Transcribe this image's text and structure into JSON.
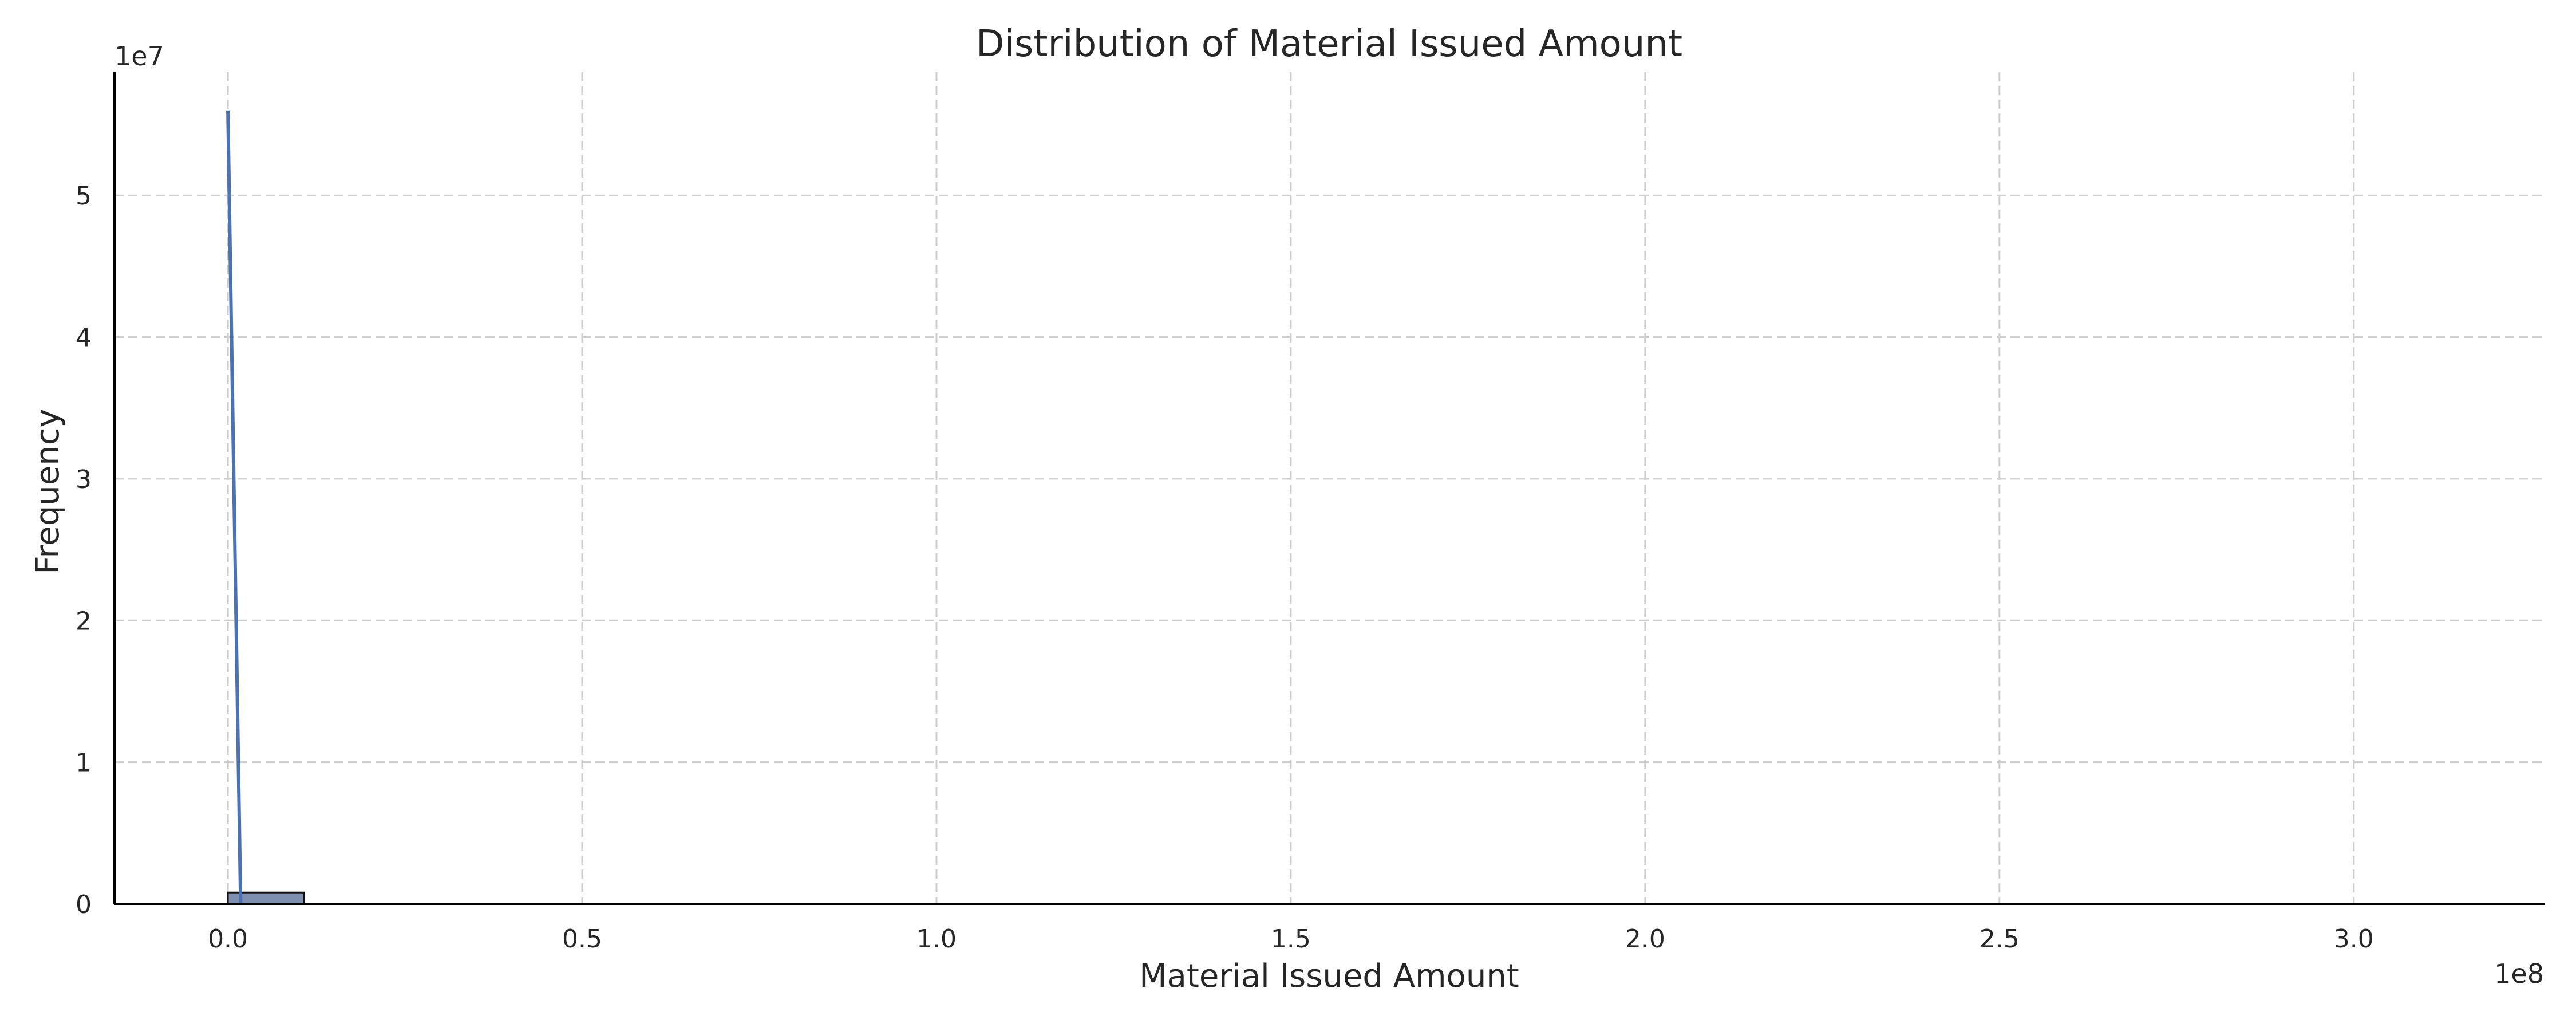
{
  "chart_data": {
    "type": "bar",
    "title": "Distribution of Material Issued Amount",
    "xlabel": "Material Issued Amount",
    "ylabel": "Frequency",
    "x_offset_label": "1e8",
    "y_offset_label": "1e7",
    "xlim": [
      -16000000.0,
      327000000.0
    ],
    "ylim": [
      0,
      58700000.0
    ],
    "x_ticks": [
      0,
      50000000,
      100000000,
      150000000,
      200000000,
      250000000,
      300000000
    ],
    "x_tick_labels": [
      "0.0",
      "0.5",
      "1.0",
      "1.5",
      "2.0",
      "2.5",
      "3.0"
    ],
    "y_ticks": [
      0,
      10000000,
      20000000,
      30000000,
      40000000,
      50000000
    ],
    "y_tick_labels": [
      "0",
      "1",
      "2",
      "3",
      "4",
      "5"
    ],
    "grid": true,
    "bins": [
      {
        "x0": 0,
        "x1": 10700000,
        "count": 800000
      },
      {
        "x0": 10700000,
        "x1": 321000000,
        "count": 0
      }
    ],
    "kde_line": {
      "color": "#4c72b0",
      "x": [
        0,
        1800000
      ],
      "y": [
        56000000,
        0
      ]
    },
    "bar_color": "#7f8fb0"
  }
}
